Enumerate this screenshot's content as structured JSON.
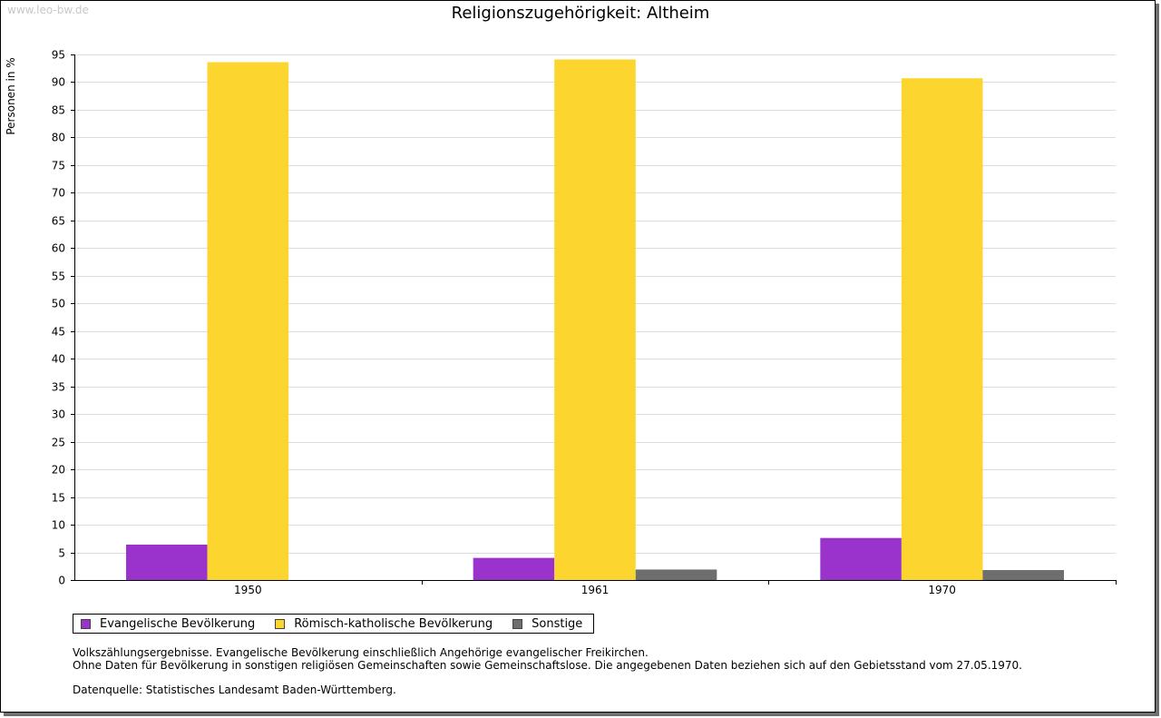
{
  "watermark": "www.leo-bw.de",
  "chart_data": {
    "type": "bar",
    "title": "Religionszugehörigkeit: Altheim",
    "xlabel": "",
    "ylabel": "Personen in %",
    "ylim": [
      0,
      95
    ],
    "y_ticks": [
      0,
      5,
      10,
      15,
      20,
      25,
      30,
      35,
      40,
      45,
      50,
      55,
      60,
      65,
      70,
      75,
      80,
      85,
      90,
      95
    ],
    "grid": true,
    "categories": [
      "1950",
      "1961",
      "1970"
    ],
    "series": [
      {
        "name": "Evangelische Bevölkerung",
        "color": "#9933CC",
        "values": [
          6.4,
          4.0,
          7.6
        ]
      },
      {
        "name": "Römisch-katholische Bevölkerung",
        "color": "#FCD62E",
        "values": [
          93.6,
          94.1,
          90.7
        ]
      },
      {
        "name": "Sonstige",
        "color": "#6E6E6E",
        "values": [
          0,
          1.9,
          1.8
        ]
      }
    ],
    "legend_position": "bottom-left"
  },
  "notes": {
    "line1": "Volkszählungsergebnisse. Evangelische Bevölkerung einschließlich Angehörige evangelischer Freikirchen.",
    "line2": "Ohne Daten für Bevölkerung in sonstigen religiösen Gemeinschaften sowie Gemeinschaftslose. Die angegebenen Daten beziehen sich auf den Gebietsstand vom 27.05.1970.",
    "source": "Datenquelle: Statistisches Landesamt Baden-Württemberg."
  }
}
